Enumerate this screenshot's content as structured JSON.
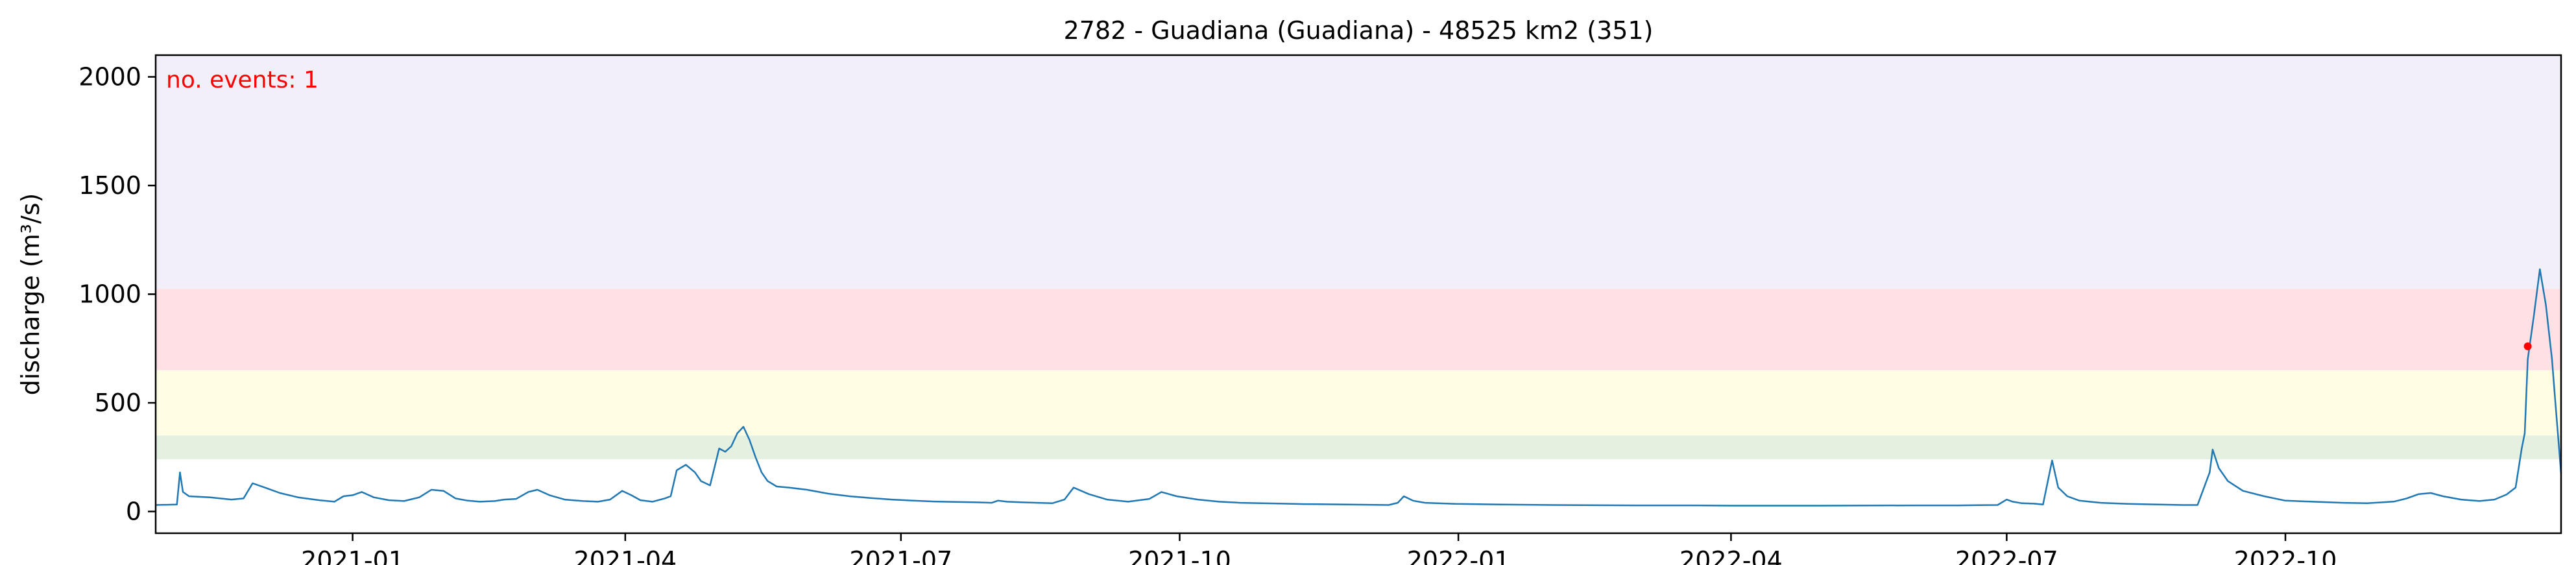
{
  "chart_data": {
    "type": "line",
    "title": "2782 - Guadiana (Guadiana) - 48525 km2 (351)",
    "xlabel": "",
    "ylabel": "discharge (m³/s)",
    "xlim": [
      "2020-10-28",
      "2022-12-31"
    ],
    "ylim": [
      -100,
      2100
    ],
    "x_ticks": [
      "2021-01-01",
      "2021-04-01",
      "2021-07-01",
      "2021-10-01",
      "2022-01-01",
      "2022-04-01",
      "2022-07-01",
      "2022-10-01"
    ],
    "x_tick_labels": [
      "2021-01",
      "2021-04",
      "2021-07",
      "2021-10",
      "2022-01",
      "2022-04",
      "2022-07",
      "2022-10"
    ],
    "y_ticks": [
      0,
      500,
      1000,
      1500,
      2000
    ],
    "y_tick_labels": [
      "0",
      "500",
      "1000",
      "1500",
      "2000"
    ],
    "grid": false,
    "bands": [
      {
        "from": 240,
        "to": 350,
        "color": "#e4f1e1"
      },
      {
        "from": 350,
        "to": 650,
        "color": "#fffde3"
      },
      {
        "from": 650,
        "to": 1025,
        "color": "#ffe1e5"
      },
      {
        "from": 1025,
        "to": 2100,
        "color": "#f2eff9"
      }
    ],
    "annotation": {
      "text": "no. events: 1",
      "color": "#ff0000"
    },
    "series": [
      {
        "color": "#1f77b4",
        "points": [
          [
            "2020-10-28",
            30
          ],
          [
            "2020-11-04",
            32
          ],
          [
            "2020-11-05",
            180
          ],
          [
            "2020-11-06",
            90
          ],
          [
            "2020-11-08",
            70
          ],
          [
            "2020-11-15",
            65
          ],
          [
            "2020-11-22",
            55
          ],
          [
            "2020-11-26",
            60
          ],
          [
            "2020-11-29",
            130
          ],
          [
            "2020-12-03",
            110
          ],
          [
            "2020-12-08",
            85
          ],
          [
            "2020-12-14",
            65
          ],
          [
            "2020-12-21",
            52
          ],
          [
            "2020-12-26",
            45
          ],
          [
            "2020-12-29",
            70
          ],
          [
            "2021-01-01",
            75
          ],
          [
            "2021-01-04",
            90
          ],
          [
            "2021-01-08",
            65
          ],
          [
            "2021-01-13",
            52
          ],
          [
            "2021-01-18",
            48
          ],
          [
            "2021-01-23",
            65
          ],
          [
            "2021-01-27",
            100
          ],
          [
            "2021-01-31",
            95
          ],
          [
            "2021-02-04",
            60
          ],
          [
            "2021-02-08",
            50
          ],
          [
            "2021-02-12",
            45
          ],
          [
            "2021-02-17",
            48
          ],
          [
            "2021-02-20",
            55
          ],
          [
            "2021-02-24",
            58
          ],
          [
            "2021-02-28",
            90
          ],
          [
            "2021-03-03",
            100
          ],
          [
            "2021-03-07",
            75
          ],
          [
            "2021-03-12",
            55
          ],
          [
            "2021-03-18",
            48
          ],
          [
            "2021-03-23",
            45
          ],
          [
            "2021-03-27",
            55
          ],
          [
            "2021-03-31",
            95
          ],
          [
            "2021-04-03",
            75
          ],
          [
            "2021-04-06",
            52
          ],
          [
            "2021-04-10",
            45
          ],
          [
            "2021-04-14",
            60
          ],
          [
            "2021-04-16",
            70
          ],
          [
            "2021-04-18",
            190
          ],
          [
            "2021-04-21",
            215
          ],
          [
            "2021-04-24",
            180
          ],
          [
            "2021-04-26",
            140
          ],
          [
            "2021-04-29",
            120
          ],
          [
            "2021-05-02",
            290
          ],
          [
            "2021-05-04",
            275
          ],
          [
            "2021-05-06",
            300
          ],
          [
            "2021-05-08",
            360
          ],
          [
            "2021-05-10",
            390
          ],
          [
            "2021-05-12",
            330
          ],
          [
            "2021-05-14",
            250
          ],
          [
            "2021-05-16",
            180
          ],
          [
            "2021-05-18",
            140
          ],
          [
            "2021-05-21",
            115
          ],
          [
            "2021-05-25",
            110
          ],
          [
            "2021-05-31",
            100
          ],
          [
            "2021-06-07",
            82
          ],
          [
            "2021-06-14",
            70
          ],
          [
            "2021-06-21",
            62
          ],
          [
            "2021-06-28",
            55
          ],
          [
            "2021-07-05",
            50
          ],
          [
            "2021-07-12",
            46
          ],
          [
            "2021-07-19",
            44
          ],
          [
            "2021-07-26",
            42
          ],
          [
            "2021-07-31",
            40
          ],
          [
            "2021-08-02",
            50
          ],
          [
            "2021-08-05",
            45
          ],
          [
            "2021-08-10",
            42
          ],
          [
            "2021-08-15",
            40
          ],
          [
            "2021-08-20",
            38
          ],
          [
            "2021-08-24",
            55
          ],
          [
            "2021-08-27",
            110
          ],
          [
            "2021-09-01",
            80
          ],
          [
            "2021-09-07",
            55
          ],
          [
            "2021-09-14",
            45
          ],
          [
            "2021-09-21",
            58
          ],
          [
            "2021-09-25",
            90
          ],
          [
            "2021-09-30",
            70
          ],
          [
            "2021-10-07",
            55
          ],
          [
            "2021-10-14",
            45
          ],
          [
            "2021-10-21",
            40
          ],
          [
            "2021-10-28",
            38
          ],
          [
            "2021-11-04",
            36
          ],
          [
            "2021-11-11",
            34
          ],
          [
            "2021-11-18",
            33
          ],
          [
            "2021-11-25",
            32
          ],
          [
            "2021-12-02",
            31
          ],
          [
            "2021-12-09",
            30
          ],
          [
            "2021-12-12",
            40
          ],
          [
            "2021-12-14",
            70
          ],
          [
            "2021-12-17",
            50
          ],
          [
            "2021-12-21",
            40
          ],
          [
            "2021-12-31",
            35
          ],
          [
            "2022-01-15",
            32
          ],
          [
            "2022-02-01",
            30
          ],
          [
            "2022-03-01",
            28
          ],
          [
            "2022-03-20",
            28
          ],
          [
            "2022-04-01",
            27
          ],
          [
            "2022-04-15",
            27
          ],
          [
            "2022-05-01",
            27
          ],
          [
            "2022-06-01",
            28
          ],
          [
            "2022-06-15",
            28
          ],
          [
            "2022-06-28",
            30
          ],
          [
            "2022-07-01",
            55
          ],
          [
            "2022-07-03",
            45
          ],
          [
            "2022-07-06",
            38
          ],
          [
            "2022-07-10",
            36
          ],
          [
            "2022-07-13",
            32
          ],
          [
            "2022-07-16",
            235
          ],
          [
            "2022-07-18",
            110
          ],
          [
            "2022-07-21",
            70
          ],
          [
            "2022-07-25",
            50
          ],
          [
            "2022-08-01",
            40
          ],
          [
            "2022-08-10",
            35
          ],
          [
            "2022-08-20",
            32
          ],
          [
            "2022-08-28",
            30
          ],
          [
            "2022-09-02",
            30
          ],
          [
            "2022-09-06",
            180
          ],
          [
            "2022-09-07",
            285
          ],
          [
            "2022-09-09",
            200
          ],
          [
            "2022-09-12",
            140
          ],
          [
            "2022-09-17",
            95
          ],
          [
            "2022-09-24",
            70
          ],
          [
            "2022-10-01",
            50
          ],
          [
            "2022-10-10",
            45
          ],
          [
            "2022-10-20",
            40
          ],
          [
            "2022-10-28",
            38
          ],
          [
            "2022-11-02",
            42
          ],
          [
            "2022-11-06",
            46
          ],
          [
            "2022-11-10",
            60
          ],
          [
            "2022-11-14",
            80
          ],
          [
            "2022-11-18",
            85
          ],
          [
            "2022-11-22",
            70
          ],
          [
            "2022-11-28",
            55
          ],
          [
            "2022-12-04",
            48
          ],
          [
            "2022-12-09",
            55
          ],
          [
            "2022-12-13",
            78
          ],
          [
            "2022-12-16",
            110
          ],
          [
            "2022-12-18",
            290
          ],
          [
            "2022-12-19",
            360
          ],
          [
            "2022-12-20",
            700
          ],
          [
            "2022-12-22",
            900
          ],
          [
            "2022-12-24",
            1115
          ],
          [
            "2022-12-26",
            950
          ],
          [
            "2022-12-28",
            700
          ],
          [
            "2022-12-29",
            520
          ],
          [
            "2022-12-30",
            350
          ],
          [
            "2022-12-31",
            175
          ]
        ]
      }
    ],
    "event_points": [
      {
        "x": "2022-12-20",
        "y": 760,
        "color": "#ff0000"
      }
    ]
  }
}
